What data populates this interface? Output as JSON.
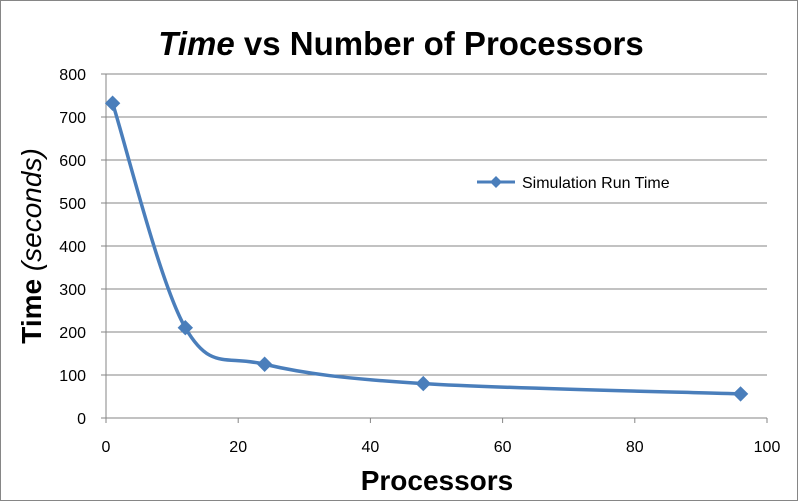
{
  "chart_data": {
    "type": "line",
    "title": {
      "italic_part": "Time",
      "rest": " vs Number of Processors"
    },
    "xlabel": "Processors",
    "ylabel": {
      "main": "Time ",
      "italic_part": "(seconds)"
    },
    "xlim": [
      0,
      100
    ],
    "ylim": [
      0,
      800
    ],
    "x_ticks": [
      0,
      20,
      40,
      60,
      80,
      100
    ],
    "y_ticks": [
      0,
      100,
      200,
      300,
      400,
      500,
      600,
      700,
      800
    ],
    "grid": "horizontal",
    "legend_position": "right",
    "series": [
      {
        "name": "Simulation Run Time",
        "color": "#4a7ebb",
        "marker": "diamond",
        "smooth": true,
        "x": [
          1,
          12,
          24,
          48,
          96
        ],
        "y": [
          732,
          210,
          125,
          80,
          56
        ]
      }
    ]
  }
}
